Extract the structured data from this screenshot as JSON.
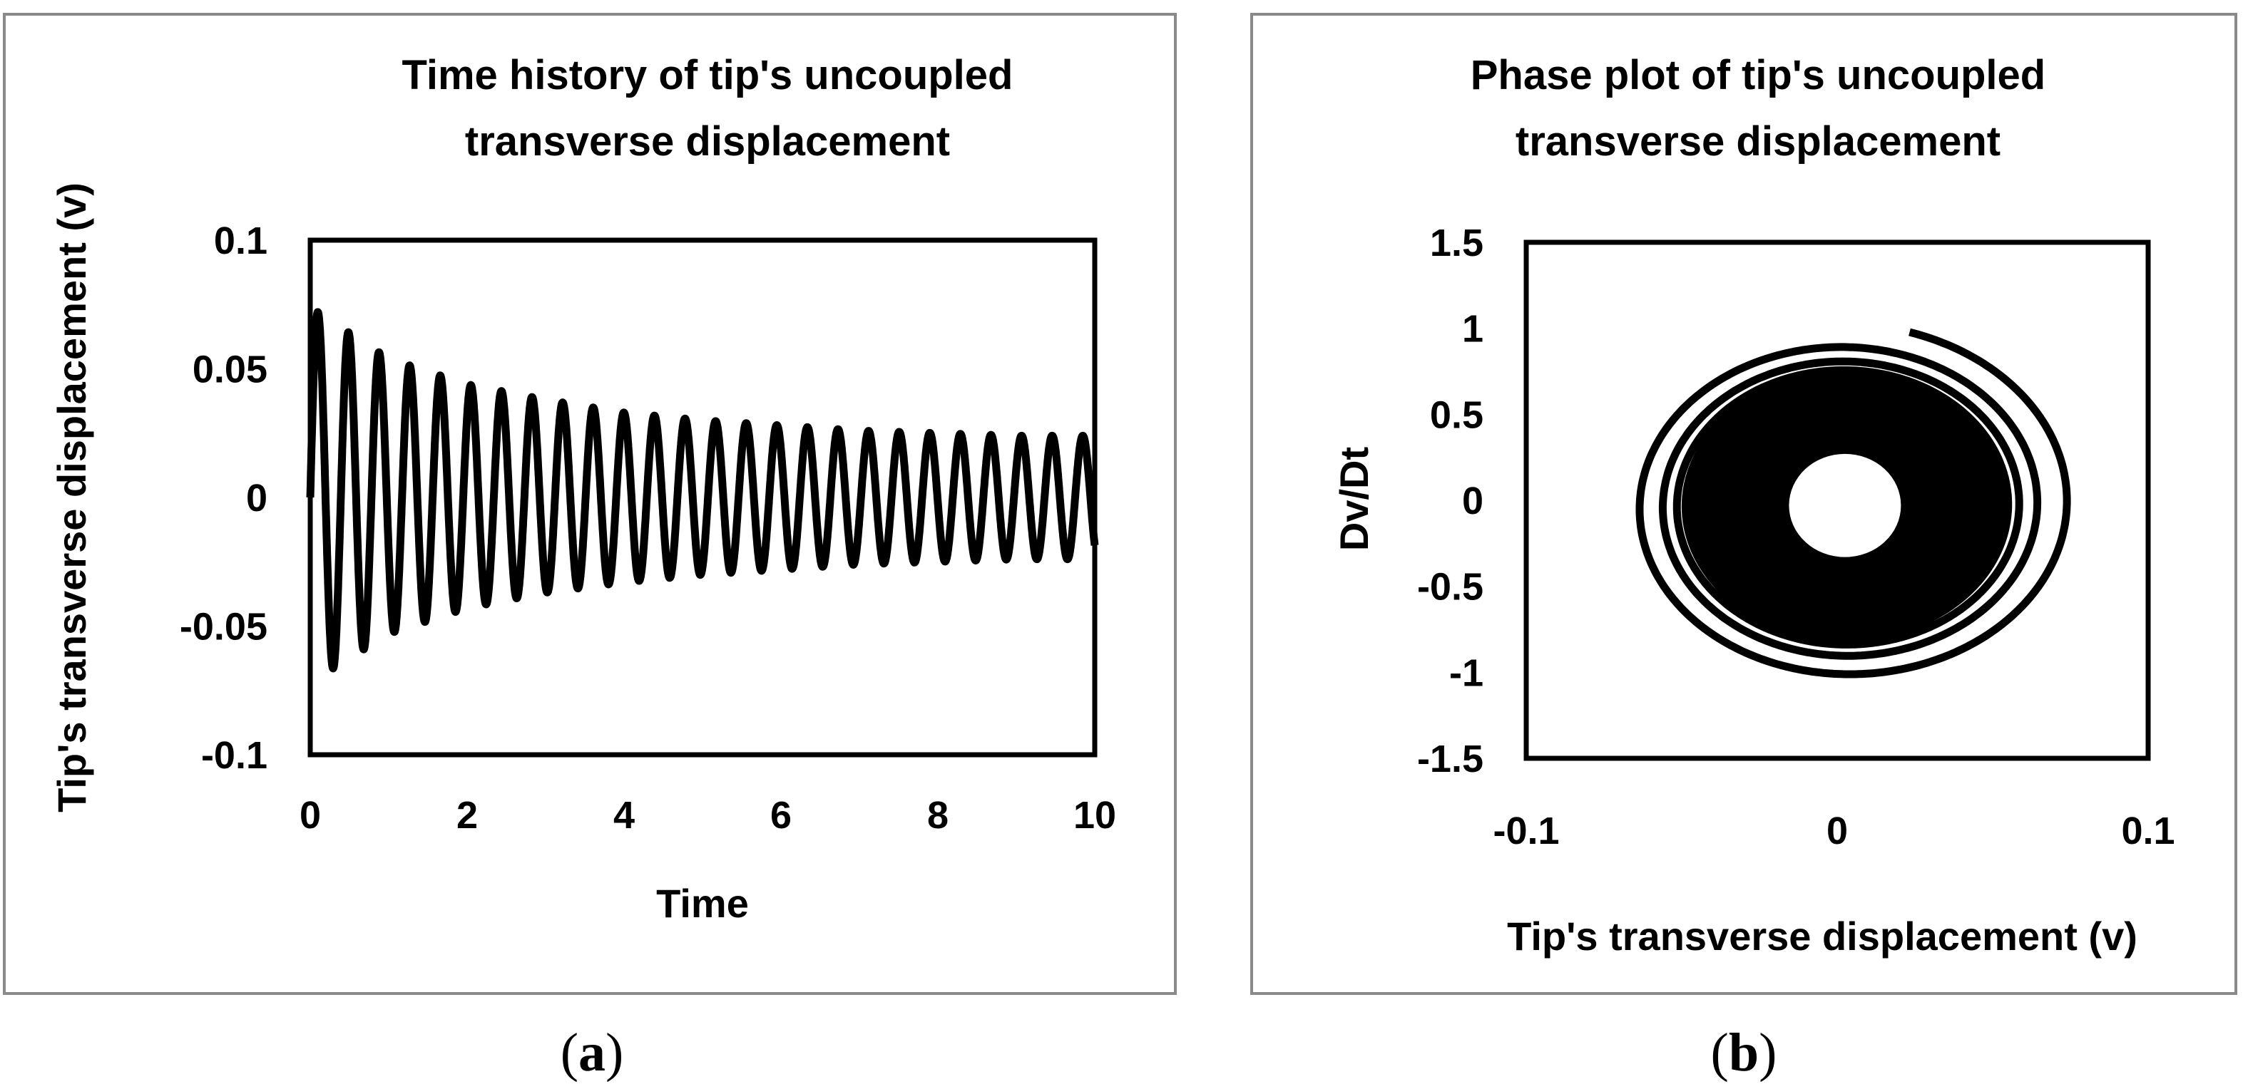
{
  "captions": {
    "a": "a",
    "b": "b",
    "open": "(",
    "close": ")"
  },
  "chart_data": [
    {
      "id": "a",
      "type": "line",
      "title": [
        "Time history of tip's uncoupled",
        "transverse displacement"
      ],
      "xlabel": "Time",
      "ylabel": "Tip's transverse displacement (v)",
      "xlim": [
        0,
        10
      ],
      "ylim": [
        -0.1,
        0.1
      ],
      "xticks": [
        0,
        2,
        4,
        6,
        8,
        10
      ],
      "xtick_labels": [
        "0",
        "2",
        "4",
        "6",
        "8",
        "10"
      ],
      "yticks": [
        0.1,
        0.05,
        0,
        -0.05,
        -0.1
      ],
      "ytick_labels": [
        "0.1",
        "0.05",
        "0",
        "-0.05",
        "-0.1"
      ],
      "grid": false,
      "legend": "none",
      "line_color": "#000000",
      "series": [
        {
          "period": 0.39,
          "samples": [
            {
              "t": 0.0,
              "peak": 0.074,
              "trough": -0.072
            },
            {
              "t": 1.0,
              "peak": 0.054,
              "trough": -0.053
            },
            {
              "t": 2.0,
              "peak": 0.044,
              "trough": -0.043
            },
            {
              "t": 3.0,
              "peak": 0.038,
              "trough": -0.037
            },
            {
              "t": 4.0,
              "peak": 0.033,
              "trough": -0.033
            },
            {
              "t": 5.0,
              "peak": 0.03,
              "trough": -0.03
            },
            {
              "t": 6.0,
              "peak": 0.028,
              "trough": -0.028
            },
            {
              "t": 7.0,
              "peak": 0.026,
              "trough": -0.026
            },
            {
              "t": 8.0,
              "peak": 0.025,
              "trough": -0.025
            },
            {
              "t": 9.0,
              "peak": 0.024,
              "trough": -0.024
            },
            {
              "t": 10.0,
              "peak": 0.024,
              "trough": -0.024
            }
          ]
        }
      ]
    },
    {
      "id": "b",
      "type": "line",
      "title": [
        "Phase plot of tip's uncoupled",
        "transverse displacement"
      ],
      "xlabel": "Tip's transverse displacement (v)",
      "ylabel": "Dv/Dt",
      "xlim": [
        -0.1,
        0.1
      ],
      "ylim": [
        -1.5,
        1.5
      ],
      "xticks": [
        -0.1,
        0,
        0.1
      ],
      "xtick_labels": [
        "-0.1",
        "0",
        "0.1"
      ],
      "yticks": [
        1.5,
        1,
        0.5,
        0,
        -0.5,
        -1,
        -1.5
      ],
      "ytick_labels": [
        "1.5",
        "1",
        "0.5",
        "0",
        "-0.5",
        "-1",
        "-1.5"
      ],
      "grid": false,
      "legend": "none",
      "line_color": "#000000",
      "series": [
        {
          "start": {
            "v": 0.02,
            "dvdt": 1.05
          },
          "outer_loop": {
            "v_min": -0.07,
            "v_max": 0.075,
            "dvdt_min": -1.03,
            "dvdt_max": 0.97
          },
          "inner_band": {
            "v_amplitude": 0.048,
            "dvdt_amplitude": 0.72
          },
          "hole": {
            "v_amplitude": 0.018,
            "dvdt_amplitude": 0.3
          }
        }
      ]
    }
  ]
}
